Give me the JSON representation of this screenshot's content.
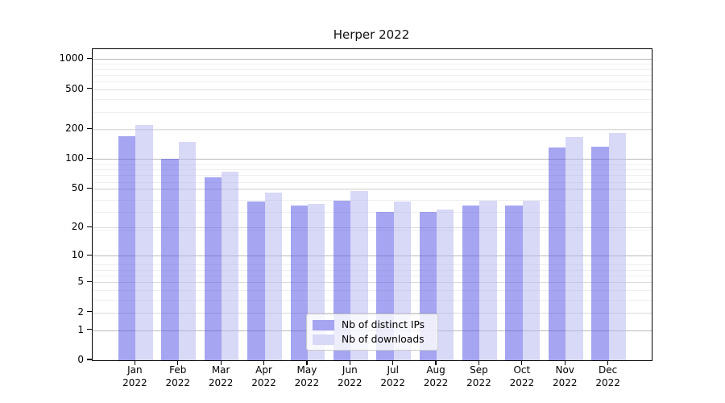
{
  "title": "Herper 2022",
  "chart_data": {
    "type": "bar",
    "title": "Herper 2022",
    "months": [
      "Jan",
      "Feb",
      "Mar",
      "Apr",
      "May",
      "Jun",
      "Jul",
      "Aug",
      "Sep",
      "Oct",
      "Nov",
      "Dec"
    ],
    "year_label": "2022",
    "series": [
      {
        "name": "Nb of distinct IPs",
        "swatch_color": "#a5a5f1",
        "bar_rgba": "rgba(82,82,229,0.52)",
        "values": [
          170,
          100,
          65,
          37,
          34,
          38,
          29,
          29,
          34,
          34,
          130,
          134
        ]
      },
      {
        "name": "Nb of downloads",
        "swatch_color": "#d8d8f7",
        "bar_rgba": "rgba(178,178,240,0.5)",
        "values": [
          220,
          150,
          75,
          46,
          35,
          48,
          37,
          31,
          38,
          38,
          168,
          182
        ]
      }
    ],
    "yticks": [
      0,
      1,
      2,
      5,
      10,
      20,
      50,
      100,
      200,
      500,
      1000
    ],
    "ytick_major": [
      1,
      10,
      100,
      1000
    ],
    "scale": "log10(value+1)",
    "ylim": [
      0,
      1216
    ],
    "grid": true,
    "legend_position": "inside-bottom-center",
    "xlabel": "",
    "ylabel": ""
  }
}
